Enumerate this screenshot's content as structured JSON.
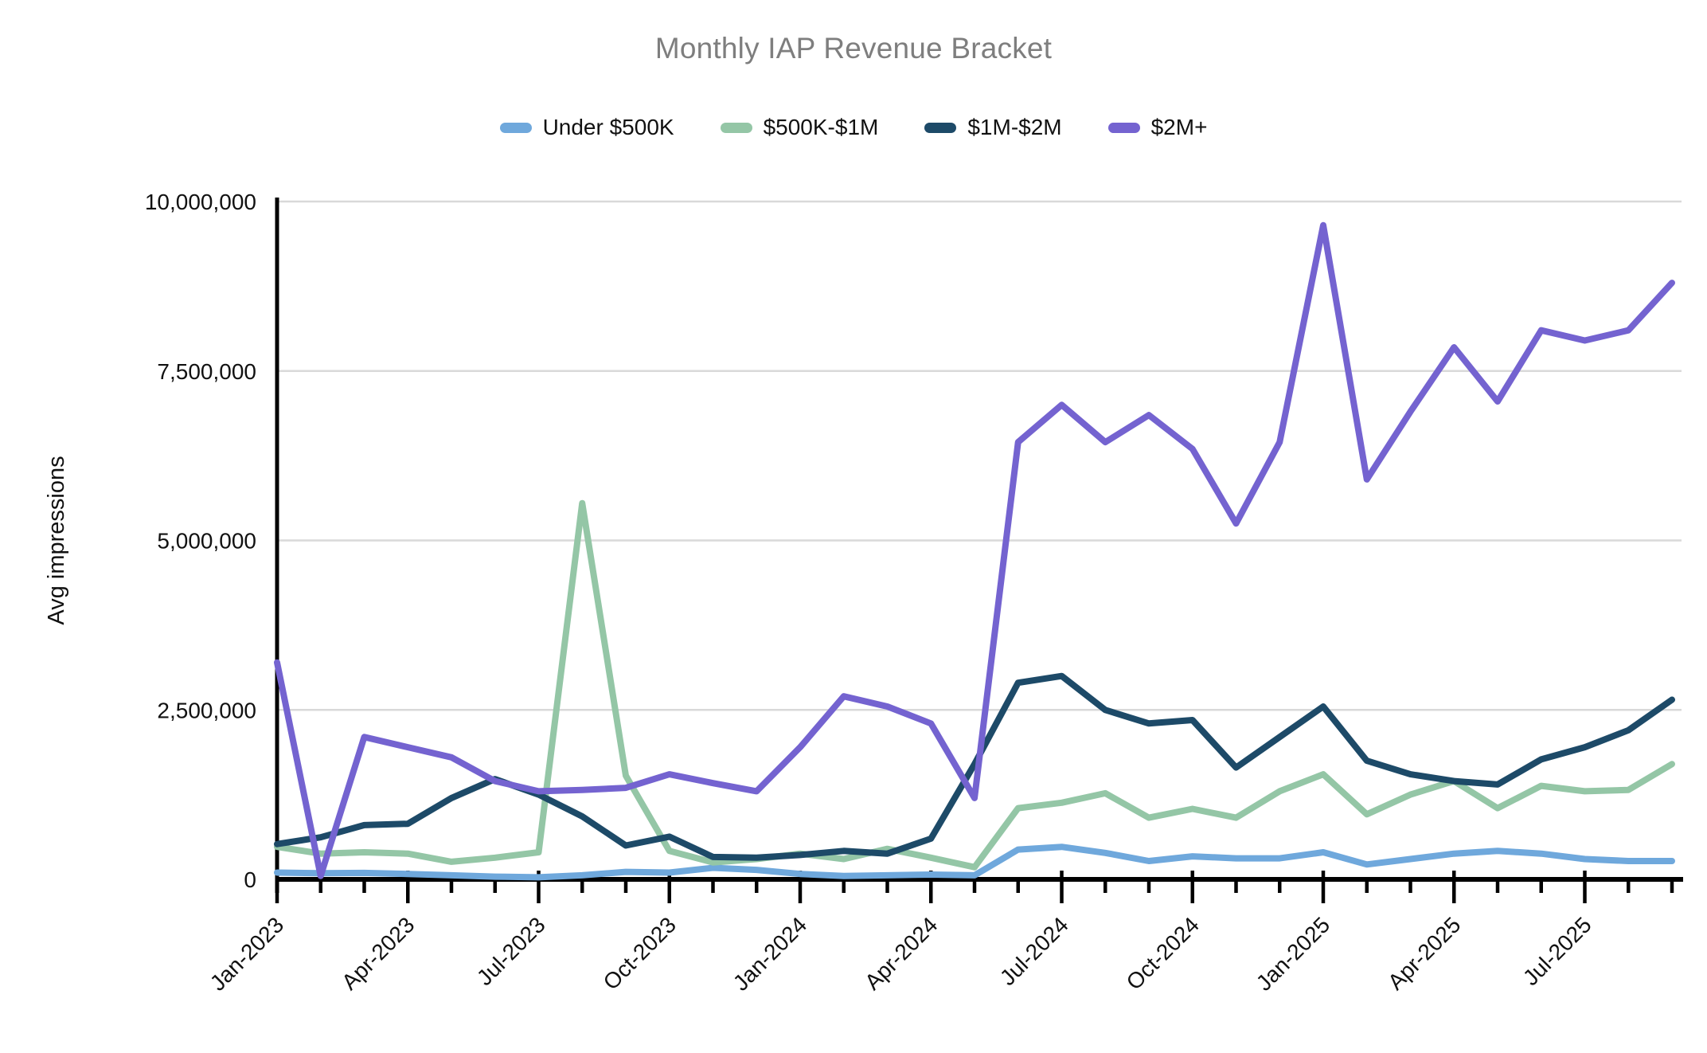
{
  "title": "Monthly IAP Revenue Bracket",
  "y_axis_title": "Avg impressions",
  "chart_data": {
    "type": "line",
    "title": "Monthly IAP Revenue Bracket",
    "xlabel": "",
    "ylabel": "Avg impressions",
    "ylim": [
      0,
      10000000
    ],
    "yticks": [
      0,
      2500000,
      5000000,
      7500000,
      10000000
    ],
    "grid": true,
    "legend_position": "top",
    "x_label_every_n_months": 3,
    "xtick_labels": [
      "Jan-2023",
      "Apr-2023",
      "Jul-2023",
      "Oct-2023",
      "Jan-2024",
      "Apr-2024",
      "Jul-2024",
      "Oct-2024",
      "Jan-2025",
      "Apr-2025",
      "Jul-2025"
    ],
    "categories": [
      "Jan-2023",
      "Feb-2023",
      "Mar-2023",
      "Apr-2023",
      "May-2023",
      "Jun-2023",
      "Jul-2023",
      "Aug-2023",
      "Sep-2023",
      "Oct-2023",
      "Nov-2023",
      "Dec-2023",
      "Jan-2024",
      "Feb-2024",
      "Mar-2024",
      "Apr-2024",
      "May-2024",
      "Jun-2024",
      "Jul-2024",
      "Aug-2024",
      "Sep-2024",
      "Oct-2024",
      "Nov-2024",
      "Dec-2024",
      "Jan-2025",
      "Feb-2025",
      "Mar-2025",
      "Apr-2025",
      "May-2025",
      "Jun-2025",
      "Jul-2025",
      "Aug-2025",
      "Sep-2025"
    ],
    "series": [
      {
        "name": "Under $500K",
        "color": "#6fa8dc",
        "values": [
          100000,
          90000,
          95000,
          80000,
          60000,
          40000,
          30000,
          60000,
          110000,
          100000,
          170000,
          140000,
          80000,
          50000,
          60000,
          70000,
          60000,
          440000,
          480000,
          390000,
          270000,
          340000,
          310000,
          310000,
          400000,
          220000,
          300000,
          380000,
          420000,
          380000,
          300000,
          270000,
          270000
        ]
      },
      {
        "name": "$500K-$1M",
        "color": "#94c6a6",
        "values": [
          480000,
          380000,
          400000,
          380000,
          260000,
          320000,
          400000,
          5550000,
          1530000,
          420000,
          250000,
          300000,
          380000,
          300000,
          450000,
          320000,
          180000,
          1050000,
          1130000,
          1270000,
          910000,
          1040000,
          910000,
          1300000,
          1550000,
          960000,
          1250000,
          1450000,
          1050000,
          1380000,
          1300000,
          1320000,
          1700000
        ]
      },
      {
        "name": "$1M-$2M",
        "color": "#1d4a68",
        "values": [
          520000,
          620000,
          800000,
          820000,
          1200000,
          1480000,
          1250000,
          930000,
          500000,
          630000,
          330000,
          320000,
          360000,
          420000,
          380000,
          600000,
          1700000,
          2900000,
          3000000,
          2500000,
          2300000,
          2350000,
          1650000,
          2100000,
          2550000,
          1750000,
          1550000,
          1450000,
          1400000,
          1770000,
          1950000,
          2200000,
          2650000
        ]
      },
      {
        "name": "$2M+",
        "color": "#7463d0",
        "values": [
          3200000,
          50000,
          2100000,
          1950000,
          1800000,
          1450000,
          1300000,
          1320000,
          1350000,
          1550000,
          1420000,
          1300000,
          1950000,
          2700000,
          2550000,
          2300000,
          1200000,
          6450000,
          7000000,
          6450000,
          6850000,
          6350000,
          5250000,
          6450000,
          9650000,
          5900000,
          6900000,
          7850000,
          7050000,
          8100000,
          7950000,
          8100000,
          8800000
        ]
      }
    ]
  },
  "layout_hints": {
    "grid_color": "#d9d9d9",
    "axis_color": "#000000",
    "tick_label_color": "#111111",
    "title_color": "#7e7e7e"
  }
}
